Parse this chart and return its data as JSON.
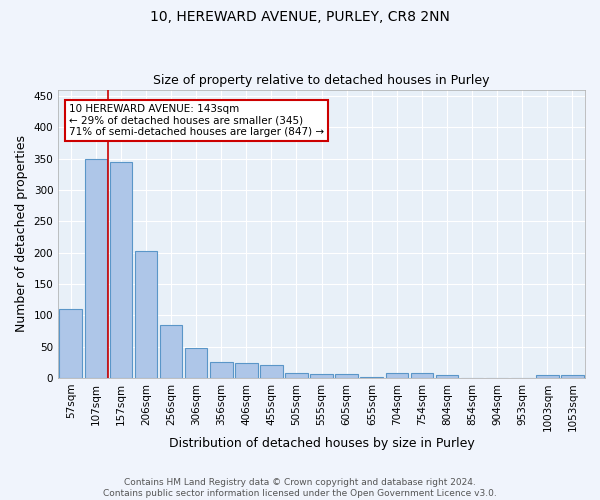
{
  "title1": "10, HEREWARD AVENUE, PURLEY, CR8 2NN",
  "title2": "Size of property relative to detached houses in Purley",
  "xlabel": "Distribution of detached houses by size in Purley",
  "ylabel": "Number of detached properties",
  "bar_labels": [
    "57sqm",
    "107sqm",
    "157sqm",
    "206sqm",
    "256sqm",
    "306sqm",
    "356sqm",
    "406sqm",
    "455sqm",
    "505sqm",
    "555sqm",
    "605sqm",
    "655sqm",
    "704sqm",
    "754sqm",
    "804sqm",
    "854sqm",
    "904sqm",
    "953sqm",
    "1003sqm",
    "1053sqm"
  ],
  "bar_values": [
    110,
    350,
    345,
    203,
    84,
    47,
    25,
    24,
    21,
    8,
    7,
    7,
    1,
    8,
    8,
    4,
    0,
    0,
    0,
    4,
    4
  ],
  "bar_color": "#aec6e8",
  "bar_edgecolor": "#5a96c8",
  "bg_color": "#e8f0f8",
  "grid_color": "#ffffff",
  "red_line_x": 1.5,
  "annotation_text": "10 HEREWARD AVENUE: 143sqm\n← 29% of detached houses are smaller (345)\n71% of semi-detached houses are larger (847) →",
  "annotation_box_facecolor": "#ffffff",
  "annotation_box_edgecolor": "#cc0000",
  "footer_text": "Contains HM Land Registry data © Crown copyright and database right 2024.\nContains public sector information licensed under the Open Government Licence v3.0.",
  "ylim": [
    0,
    460
  ],
  "yticks": [
    0,
    50,
    100,
    150,
    200,
    250,
    300,
    350,
    400,
    450
  ],
  "fig_bg_color": "#f0f4fc",
  "title1_fontsize": 10,
  "title2_fontsize": 9,
  "tick_fontsize": 7.5,
  "axis_label_fontsize": 9,
  "annotation_fontsize": 7.5,
  "footer_fontsize": 6.5
}
